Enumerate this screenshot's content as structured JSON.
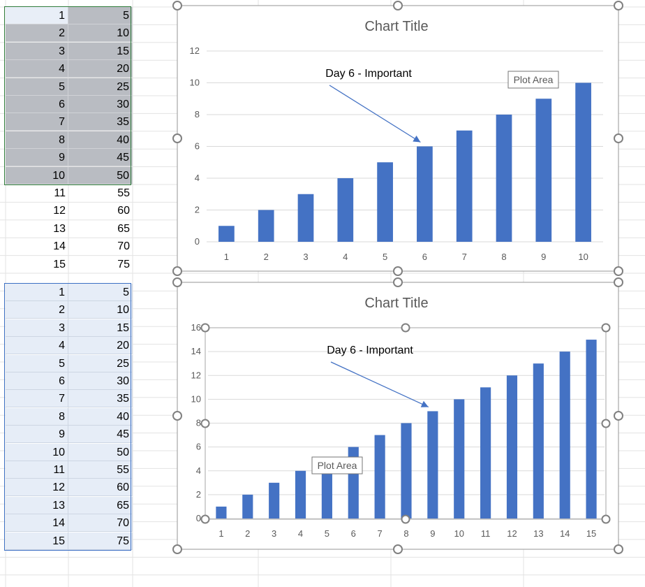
{
  "sheet_top": {
    "rows": [
      {
        "a": "1",
        "b": "5"
      },
      {
        "a": "2",
        "b": "10"
      },
      {
        "a": "3",
        "b": "15"
      },
      {
        "a": "4",
        "b": "20"
      },
      {
        "a": "5",
        "b": "25"
      },
      {
        "a": "6",
        "b": "30"
      },
      {
        "a": "7",
        "b": "35"
      },
      {
        "a": "8",
        "b": "40"
      },
      {
        "a": "9",
        "b": "45"
      },
      {
        "a": "10",
        "b": "50"
      },
      {
        "a": "11",
        "b": "55"
      },
      {
        "a": "12",
        "b": "60"
      },
      {
        "a": "13",
        "b": "65"
      },
      {
        "a": "14",
        "b": "70"
      },
      {
        "a": "15",
        "b": "75"
      }
    ],
    "selected_rows": 10
  },
  "sheet_bottom": {
    "rows": [
      {
        "a": "1",
        "b": "5"
      },
      {
        "a": "2",
        "b": "10"
      },
      {
        "a": "3",
        "b": "15"
      },
      {
        "a": "4",
        "b": "20"
      },
      {
        "a": "5",
        "b": "25"
      },
      {
        "a": "6",
        "b": "30"
      },
      {
        "a": "7",
        "b": "35"
      },
      {
        "a": "8",
        "b": "40"
      },
      {
        "a": "9",
        "b": "45"
      },
      {
        "a": "10",
        "b": "50"
      },
      {
        "a": "11",
        "b": "55"
      },
      {
        "a": "12",
        "b": "60"
      },
      {
        "a": "13",
        "b": "65"
      },
      {
        "a": "14",
        "b": "70"
      },
      {
        "a": "15",
        "b": "75"
      }
    ],
    "selected_rows": 15
  },
  "colors": {
    "bar": "#4472c4",
    "arrow": "#4472c4",
    "grid": "#d9d9d9",
    "axis_text": "#595959",
    "title": "#595959",
    "handle": "#808080"
  },
  "chart_data": [
    {
      "type": "bar",
      "title": "Chart Title",
      "categories": [
        "1",
        "2",
        "3",
        "4",
        "5",
        "6",
        "7",
        "8",
        "9",
        "10"
      ],
      "values": [
        1,
        2,
        3,
        4,
        5,
        6,
        7,
        8,
        9,
        10
      ],
      "ylim": [
        0,
        12
      ],
      "yticks": [
        0,
        2,
        4,
        6,
        8,
        10,
        12
      ],
      "grid": true,
      "annotation": {
        "text": "Day 6 - Important",
        "target_category": "6"
      },
      "tooltip": "Plot Area"
    },
    {
      "type": "bar",
      "title": "Chart Title",
      "categories": [
        "1",
        "2",
        "3",
        "4",
        "5",
        "6",
        "7",
        "8",
        "9",
        "10",
        "11",
        "12",
        "13",
        "14",
        "15"
      ],
      "values": [
        1,
        2,
        3,
        4,
        5,
        6,
        7,
        8,
        9,
        10,
        11,
        12,
        13,
        14,
        15
      ],
      "ylim": [
        0,
        16
      ],
      "yticks": [
        0,
        2,
        4,
        6,
        8,
        10,
        12,
        14,
        16
      ],
      "grid": true,
      "annotation": {
        "text": "Day 6 - Important",
        "target_category": "9"
      },
      "tooltip": "Plot Area"
    }
  ]
}
